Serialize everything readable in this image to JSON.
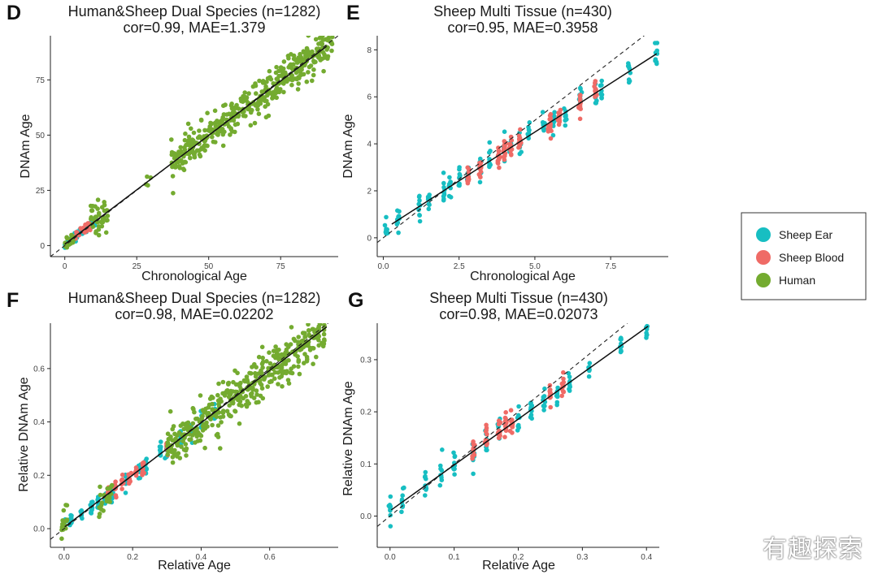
{
  "colors": {
    "Sheep Ear": "#17bec2",
    "Sheep Blood": "#ef6b66",
    "Human": "#74ab30"
  },
  "legend": {
    "entries": [
      "Sheep Ear",
      "Sheep Blood",
      "Human"
    ]
  },
  "watermark": "有趣探索",
  "chart_data": [
    {
      "type": "scatter",
      "panel": "D",
      "title": "Human&Sheep Dual Species (n=1282)",
      "subtitle": "cor=0.99, MAE=1.379",
      "xlabel": "Chronological Age",
      "ylabel": "DNAm Age",
      "xlim": [
        -5,
        95
      ],
      "ylim": [
        -5,
        95
      ],
      "xticks": [
        0,
        25,
        50,
        75
      ],
      "yticks": [
        0,
        25,
        50,
        75
      ],
      "tick_decimals": 0,
      "fit": {
        "slope": 0.985,
        "intercept": 0.6
      },
      "series": [
        {
          "name": "Sheep Ear",
          "clusters": [
            {
              "x": [
                0,
                11
              ],
              "noise": 1.0,
              "n": 60
            }
          ]
        },
        {
          "name": "Sheep Blood",
          "clusters": [
            {
              "x": [
                1,
                9
              ],
              "noise": 1.0,
              "n": 25
            }
          ]
        },
        {
          "name": "Human",
          "clusters": [
            {
              "x": [
                0,
                3
              ],
              "noise": 1.5,
              "n": 20
            },
            {
              "x": [
                9,
                15
              ],
              "noise": 4.0,
              "n": 40
            },
            {
              "x": [
                28,
                30
              ],
              "noise": 3,
              "n": 4
            },
            {
              "x": [
                37,
                93
              ],
              "noise": 4.0,
              "n": 420
            }
          ]
        }
      ]
    },
    {
      "type": "scatter",
      "panel": "E",
      "title": "Sheep Multi Tissue (n=430)",
      "subtitle": "cor=0.95, MAE=0.3958",
      "xlabel": "Chronological Age",
      "ylabel": "DNAm Age",
      "xlim": [
        -0.2,
        9.4
      ],
      "ylim": [
        -0.8,
        8.6
      ],
      "xticks": [
        0,
        2.5,
        5,
        7.5
      ],
      "yticks": [
        0,
        2,
        4,
        6,
        8
      ],
      "tick_decimals": 1,
      "ytick_decimals": 0,
      "fit": {
        "slope": 0.83,
        "intercept": 0.35
      },
      "series": [
        {
          "name": "Sheep Ear",
          "xs": [
            0.1,
            0.5,
            1.2,
            1.5,
            2,
            2.2,
            2.5,
            2.8,
            3.2,
            3.5,
            4,
            4.2,
            4.5,
            4.8,
            5.3,
            5.6,
            6,
            6.5,
            7,
            7.2,
            8.1,
            9
          ],
          "noise": 0.55,
          "per": 9
        },
        {
          "name": "Sheep Blood",
          "xs": [
            2.8,
            3.2,
            3.8,
            4,
            4.2,
            4.5,
            5.5,
            5.8,
            6.5,
            7
          ],
          "noise": 0.45,
          "per": 14
        }
      ]
    },
    {
      "type": "scatter",
      "panel": "F",
      "title": "Human&Sheep Dual Species (n=1282)",
      "subtitle": "cor=0.98, MAE=0.02202",
      "xlabel": "Relative Age",
      "ylabel": "Relative DNAm Age",
      "xlim": [
        -0.04,
        0.8
      ],
      "ylim": [
        -0.07,
        0.77
      ],
      "xticks": [
        0,
        0.2,
        0.4,
        0.6
      ],
      "yticks": [
        0,
        0.2,
        0.4,
        0.6
      ],
      "tick_decimals": 1,
      "fit": {
        "slope": 0.98,
        "intercept": 0.005
      },
      "series": [
        {
          "name": "Sheep Ear",
          "xs": [
            0,
            0.02,
            0.05,
            0.08,
            0.1,
            0.12,
            0.14,
            0.18,
            0.22,
            0.24,
            0.28,
            0.3,
            0.34,
            0.37,
            0.4,
            0.44
          ],
          "noise": 0.035,
          "per": 9
        },
        {
          "name": "Sheep Blood",
          "xs": [
            0.13,
            0.15,
            0.17,
            0.19,
            0.21,
            0.23,
            0.3
          ],
          "noise": 0.025,
          "per": 9
        },
        {
          "name": "Human",
          "clusters": [
            {
              "x": [
                -0.01,
                0.01
              ],
              "noise": 0.03,
              "n": 15
            },
            {
              "x": [
                0.1,
                0.14
              ],
              "noise": 0.03,
              "n": 25
            },
            {
              "x": [
                0.3,
                0.76
              ],
              "noise": 0.04,
              "n": 420
            }
          ]
        }
      ]
    },
    {
      "type": "scatter",
      "panel": "G",
      "title": "Sheep Multi Tissue (n=430)",
      "subtitle": "cor=0.98, MAE=0.02073",
      "xlabel": "Relative Age",
      "ylabel": "Relative DNAm Age",
      "xlim": [
        -0.02,
        0.42
      ],
      "ylim": [
        -0.06,
        0.37
      ],
      "xticks": [
        0,
        0.1,
        0.2,
        0.3,
        0.4
      ],
      "yticks": [
        0,
        0.1,
        0.2,
        0.3
      ],
      "tick_decimals": 1,
      "fit": {
        "slope": 0.88,
        "intercept": 0.01
      },
      "series": [
        {
          "name": "Sheep Ear",
          "xs": [
            0,
            0.02,
            0.055,
            0.08,
            0.1,
            0.13,
            0.15,
            0.17,
            0.2,
            0.22,
            0.24,
            0.26,
            0.28,
            0.31,
            0.36,
            0.4
          ],
          "noise": 0.025,
          "per": 9
        },
        {
          "name": "Sheep Blood",
          "xs": [
            0.13,
            0.15,
            0.17,
            0.18,
            0.19,
            0.25,
            0.27
          ],
          "noise": 0.022,
          "per": 12
        }
      ]
    }
  ]
}
